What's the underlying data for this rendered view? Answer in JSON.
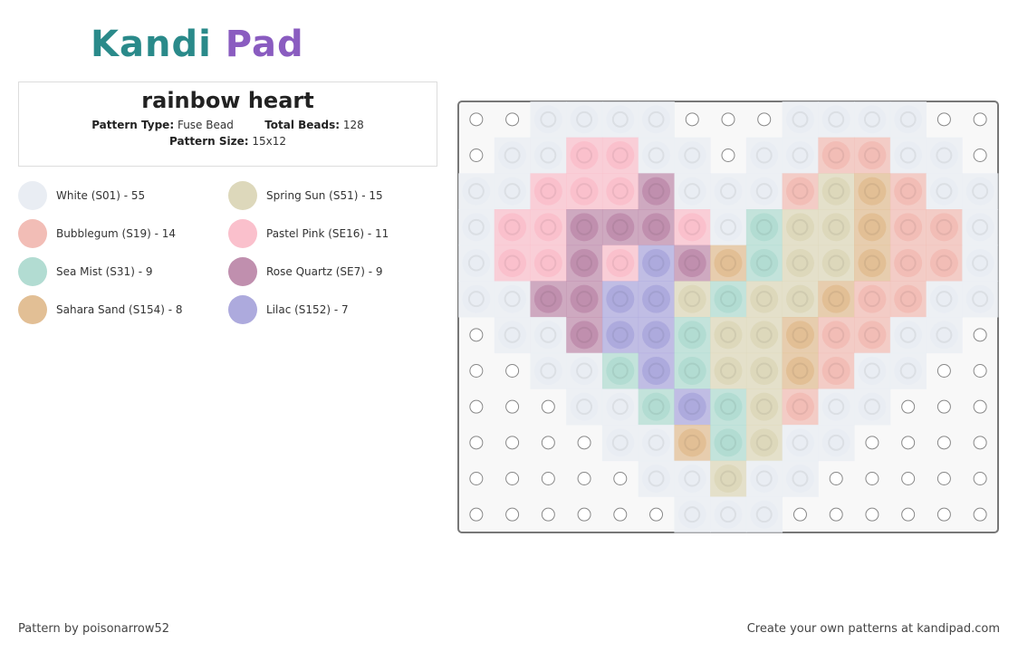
{
  "logo": {
    "brand": "Kandi",
    "product": "Pad"
  },
  "pattern": {
    "title": "rainbow heart",
    "type_label": "Pattern Type:",
    "type": "Fuse Bead",
    "beads_label": "Total Beads:",
    "beads": "128",
    "size_label": "Pattern Size:",
    "size": "15x12"
  },
  "legend": [
    {
      "label": "White (S01) - 55",
      "color": "#e9edf3"
    },
    {
      "label": "Spring Sun (S51) - 15",
      "color": "#ddd8bb"
    },
    {
      "label": "Bubblegum (S19) - 14",
      "color": "#f2bdb6"
    },
    {
      "label": "Pastel Pink (SE16) - 11",
      "color": "#fac0cc"
    },
    {
      "label": "Sea Mist (S31) - 9",
      "color": "#b2dcd2"
    },
    {
      "label": "Rose Quartz (SE7) - 9",
      "color": "#c08fae"
    },
    {
      "label": "Sahara Sand (S154) - 8",
      "color": "#e2bf95"
    },
    {
      "label": "Lilac (S152) - 7",
      "color": "#adaadd"
    }
  ],
  "grid": [
    [
      null,
      null,
      "#e9edf3",
      "#e9edf3",
      "#e9edf3",
      "#e9edf3",
      null,
      null,
      null,
      "#e9edf3",
      "#e9edf3",
      "#e9edf3",
      "#e9edf3",
      null,
      null
    ],
    [
      null,
      "#e9edf3",
      "#e9edf3",
      "#fac0cc",
      "#fac0cc",
      "#e9edf3",
      "#e9edf3",
      null,
      "#e9edf3",
      "#e9edf3",
      "#f2bdb6",
      "#f2bdb6",
      "#e9edf3",
      "#e9edf3",
      null
    ],
    [
      "#e9edf3",
      "#e9edf3",
      "#fac0cc",
      "#fac0cc",
      "#fac0cc",
      "#c08fae",
      "#e9edf3",
      "#e9edf3",
      "#e9edf3",
      "#f2bdb6",
      "#ddd8bb",
      "#e2bf95",
      "#f2bdb6",
      "#e9edf3",
      "#e9edf3"
    ],
    [
      "#e9edf3",
      "#fac0cc",
      "#fac0cc",
      "#c08fae",
      "#c08fae",
      "#c08fae",
      "#fac0cc",
      "#e9edf3",
      "#b2dcd2",
      "#ddd8bb",
      "#ddd8bb",
      "#e2bf95",
      "#f2bdb6",
      "#f2bdb6",
      "#e9edf3"
    ],
    [
      "#e9edf3",
      "#fac0cc",
      "#fac0cc",
      "#c08fae",
      "#fac0cc",
      "#adaadd",
      "#c08fae",
      "#e2bf95",
      "#b2dcd2",
      "#ddd8bb",
      "#ddd8bb",
      "#e2bf95",
      "#f2bdb6",
      "#f2bdb6",
      "#e9edf3"
    ],
    [
      "#e9edf3",
      "#e9edf3",
      "#c08fae",
      "#c08fae",
      "#adaadd",
      "#adaadd",
      "#ddd8bb",
      "#b2dcd2",
      "#ddd8bb",
      "#ddd8bb",
      "#e2bf95",
      "#f2bdb6",
      "#f2bdb6",
      "#e9edf3",
      "#e9edf3"
    ],
    [
      null,
      "#e9edf3",
      "#e9edf3",
      "#c08fae",
      "#adaadd",
      "#adaadd",
      "#b2dcd2",
      "#ddd8bb",
      "#ddd8bb",
      "#e2bf95",
      "#f2bdb6",
      "#f2bdb6",
      "#e9edf3",
      "#e9edf3",
      null
    ],
    [
      null,
      null,
      "#e9edf3",
      "#e9edf3",
      "#b2dcd2",
      "#adaadd",
      "#b2dcd2",
      "#ddd8bb",
      "#ddd8bb",
      "#e2bf95",
      "#f2bdb6",
      "#e9edf3",
      "#e9edf3",
      null,
      null
    ],
    [
      null,
      null,
      null,
      "#e9edf3",
      "#e9edf3",
      "#b2dcd2",
      "#adaadd",
      "#b2dcd2",
      "#ddd8bb",
      "#f2bdb6",
      "#e9edf3",
      "#e9edf3",
      null,
      null,
      null
    ],
    [
      null,
      null,
      null,
      null,
      "#e9edf3",
      "#e9edf3",
      "#e2bf95",
      "#b2dcd2",
      "#ddd8bb",
      "#e9edf3",
      "#e9edf3",
      null,
      null,
      null,
      null
    ],
    [
      null,
      null,
      null,
      null,
      null,
      "#e9edf3",
      "#e9edf3",
      "#ddd8bb",
      "#e9edf3",
      "#e9edf3",
      null,
      null,
      null,
      null,
      null
    ],
    [
      null,
      null,
      null,
      null,
      null,
      null,
      "#e9edf3",
      "#e9edf3",
      "#e9edf3",
      null,
      null,
      null,
      null,
      null,
      null
    ]
  ],
  "footer": {
    "credit": "Pattern by poisonarrow52",
    "link": "Create your own patterns at kandipad.com"
  }
}
